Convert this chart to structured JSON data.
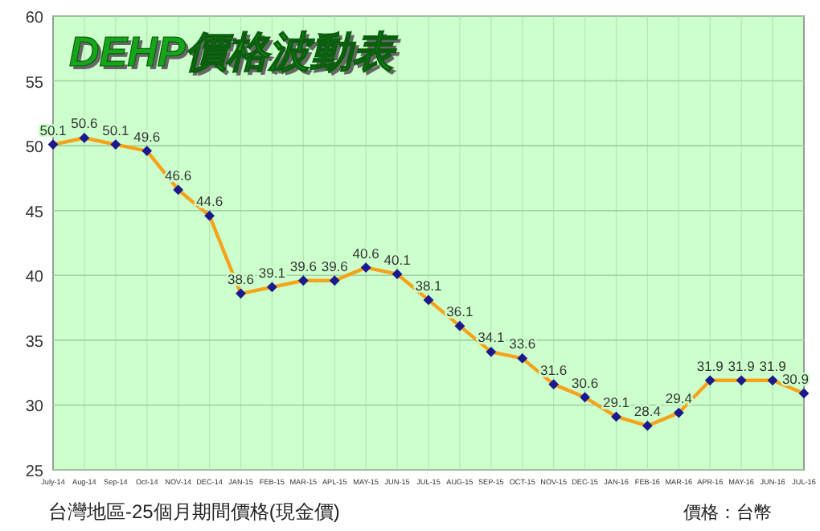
{
  "chart_data": {
    "type": "line",
    "title": "DEHP價格波動表",
    "categories": [
      "July-14",
      "Aug-14",
      "Sep-14",
      "Oct-14",
      "NOV-14",
      "DEC-14",
      "JAN-15",
      "FEB-15",
      "MAR-15",
      "APL-15",
      "MAY-15",
      "JUN-15",
      "JUL-15",
      "AUG-15",
      "SEP-15",
      "OCT-15",
      "NOV-15",
      "DEC-15",
      "JAN-16",
      "FEB-16",
      "MAR-16",
      "APR-16",
      "MAY-16",
      "JUN-16",
      "JUL-16"
    ],
    "series": [
      {
        "color": "#f5a31a",
        "values": [
          50.1,
          50.6,
          50.1,
          49.6,
          46.6,
          44.6,
          38.6,
          39.1,
          39.6,
          39.6,
          40.6,
          40.1,
          38.1,
          36.1,
          34.1,
          33.6,
          31.6,
          30.6,
          29.1,
          28.4,
          29.4,
          31.9,
          31.9,
          31.9,
          30.9
        ]
      }
    ],
    "ylim": [
      25,
      60
    ],
    "yticks": [
      25,
      30,
      35,
      40,
      45,
      50,
      55,
      60
    ],
    "grid": true,
    "marker": "diamond",
    "data_labels": true,
    "annotations": [
      "台灣地區-25個月期間價格(現金價)",
      "價格：台幣"
    ]
  }
}
